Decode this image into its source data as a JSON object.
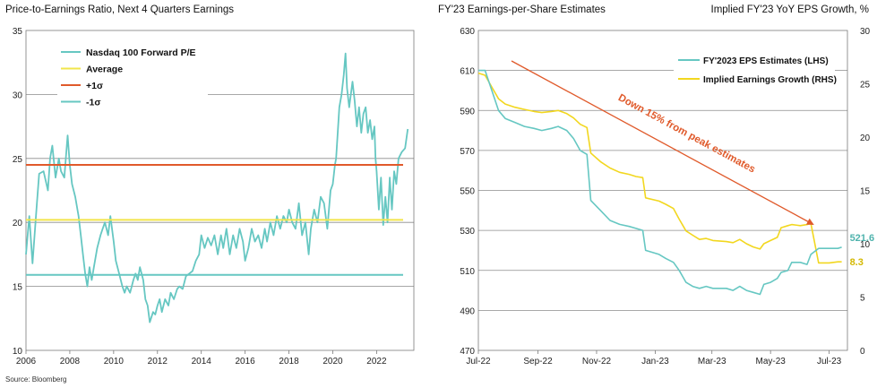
{
  "source": "Source: Bloomberg",
  "chart_data": [
    {
      "type": "line",
      "title": "Price-to-Earnings Ratio, Next 4 Quarters Earnings",
      "ylim": [
        10,
        35
      ],
      "yticks": [
        10,
        15,
        20,
        25,
        30,
        35
      ],
      "xlim": [
        2006,
        2023.7
      ],
      "xticks": [
        2006,
        2008,
        2010,
        2012,
        2014,
        2016,
        2018,
        2020,
        2022
      ],
      "grid": "horizontal",
      "legend_position": "top-left",
      "series": [
        {
          "name": "Nasdaq 100 Forward P/E",
          "color": "#66c7c2",
          "points": [
            [
              2006.0,
              17.5
            ],
            [
              2006.15,
              20.5
            ],
            [
              2006.3,
              16.8
            ],
            [
              2006.5,
              21.5
            ],
            [
              2006.6,
              23.8
            ],
            [
              2006.8,
              24.0
            ],
            [
              2007.0,
              22.5
            ],
            [
              2007.1,
              25.0
            ],
            [
              2007.2,
              26.0
            ],
            [
              2007.35,
              23.5
            ],
            [
              2007.5,
              25.0
            ],
            [
              2007.6,
              24.0
            ],
            [
              2007.75,
              23.5
            ],
            [
              2007.9,
              26.8
            ],
            [
              2008.0,
              24.5
            ],
            [
              2008.1,
              23.0
            ],
            [
              2008.25,
              22.0
            ],
            [
              2008.4,
              20.5
            ],
            [
              2008.5,
              19.0
            ],
            [
              2008.6,
              17.5
            ],
            [
              2008.7,
              16.0
            ],
            [
              2008.8,
              15.0
            ],
            [
              2008.9,
              16.5
            ],
            [
              2009.0,
              15.5
            ],
            [
              2009.1,
              16.5
            ],
            [
              2009.25,
              18.0
            ],
            [
              2009.4,
              19.0
            ],
            [
              2009.5,
              19.5
            ],
            [
              2009.6,
              20.0
            ],
            [
              2009.75,
              19.0
            ],
            [
              2009.85,
              20.5
            ],
            [
              2010.0,
              18.5
            ],
            [
              2010.1,
              17.0
            ],
            [
              2010.25,
              16.0
            ],
            [
              2010.4,
              15.0
            ],
            [
              2010.5,
              14.5
            ],
            [
              2010.6,
              15.0
            ],
            [
              2010.75,
              14.5
            ],
            [
              2010.9,
              15.5
            ],
            [
              2011.0,
              16.0
            ],
            [
              2011.1,
              15.5
            ],
            [
              2011.2,
              16.5
            ],
            [
              2011.35,
              15.5
            ],
            [
              2011.45,
              14.0
            ],
            [
              2011.55,
              13.5
            ],
            [
              2011.65,
              12.2
            ],
            [
              2011.8,
              13.0
            ],
            [
              2011.9,
              12.8
            ],
            [
              2012.0,
              13.5
            ],
            [
              2012.1,
              14.0
            ],
            [
              2012.2,
              13.0
            ],
            [
              2012.35,
              14.0
            ],
            [
              2012.5,
              13.5
            ],
            [
              2012.6,
              14.5
            ],
            [
              2012.75,
              14.0
            ],
            [
              2012.9,
              14.8
            ],
            [
              2013.0,
              15.0
            ],
            [
              2013.15,
              14.8
            ],
            [
              2013.3,
              15.8
            ],
            [
              2013.45,
              16.0
            ],
            [
              2013.6,
              16.2
            ],
            [
              2013.75,
              17.0
            ],
            [
              2013.9,
              17.5
            ],
            [
              2014.0,
              19.0
            ],
            [
              2014.15,
              18.0
            ],
            [
              2014.3,
              18.8
            ],
            [
              2014.45,
              18.2
            ],
            [
              2014.6,
              19.0
            ],
            [
              2014.75,
              17.5
            ],
            [
              2014.9,
              19.0
            ],
            [
              2015.0,
              18.0
            ],
            [
              2015.15,
              19.5
            ],
            [
              2015.3,
              17.5
            ],
            [
              2015.45,
              19.0
            ],
            [
              2015.6,
              18.0
            ],
            [
              2015.75,
              19.5
            ],
            [
              2015.9,
              18.5
            ],
            [
              2016.0,
              17.0
            ],
            [
              2016.15,
              18.0
            ],
            [
              2016.3,
              19.5
            ],
            [
              2016.45,
              18.5
            ],
            [
              2016.6,
              19.0
            ],
            [
              2016.75,
              18.0
            ],
            [
              2016.9,
              19.5
            ],
            [
              2017.0,
              18.5
            ],
            [
              2017.15,
              20.0
            ],
            [
              2017.3,
              19.0
            ],
            [
              2017.45,
              20.5
            ],
            [
              2017.6,
              19.5
            ],
            [
              2017.75,
              20.5
            ],
            [
              2017.9,
              20.0
            ],
            [
              2018.0,
              21.0
            ],
            [
              2018.15,
              20.0
            ],
            [
              2018.3,
              19.5
            ],
            [
              2018.45,
              21.5
            ],
            [
              2018.6,
              19.0
            ],
            [
              2018.75,
              20.0
            ],
            [
              2018.9,
              17.5
            ],
            [
              2019.0,
              19.5
            ],
            [
              2019.15,
              21.0
            ],
            [
              2019.3,
              20.0
            ],
            [
              2019.45,
              22.0
            ],
            [
              2019.6,
              21.5
            ],
            [
              2019.75,
              19.5
            ],
            [
              2019.9,
              22.5
            ],
            [
              2020.0,
              23.0
            ],
            [
              2020.1,
              24.5
            ],
            [
              2020.15,
              25.0
            ],
            [
              2020.3,
              29.0
            ],
            [
              2020.4,
              30.0
            ],
            [
              2020.5,
              31.5
            ],
            [
              2020.58,
              33.2
            ],
            [
              2020.65,
              30.5
            ],
            [
              2020.75,
              29.0
            ],
            [
              2020.9,
              31.0
            ],
            [
              2021.0,
              29.5
            ],
            [
              2021.1,
              27.5
            ],
            [
              2021.2,
              29.0
            ],
            [
              2021.3,
              27.0
            ],
            [
              2021.4,
              28.5
            ],
            [
              2021.5,
              29.0
            ],
            [
              2021.6,
              27.0
            ],
            [
              2021.7,
              28.0
            ],
            [
              2021.8,
              26.5
            ],
            [
              2021.9,
              27.5
            ],
            [
              2021.95,
              25.0
            ],
            [
              2022.0,
              24.0
            ],
            [
              2022.1,
              21.0
            ],
            [
              2022.2,
              23.5
            ],
            [
              2022.3,
              19.8
            ],
            [
              2022.4,
              22.0
            ],
            [
              2022.5,
              20.0
            ],
            [
              2022.6,
              23.5
            ],
            [
              2022.7,
              21.0
            ],
            [
              2022.8,
              24.0
            ],
            [
              2022.9,
              23.0
            ],
            [
              2023.0,
              25.0
            ],
            [
              2023.15,
              25.5
            ],
            [
              2023.3,
              25.8
            ],
            [
              2023.42,
              27.3
            ]
          ]
        },
        {
          "name": "Average",
          "color": "#f2e54b",
          "level": 20.2
        },
        {
          "name": "+1σ",
          "color": "#e05a2b",
          "level": 24.5
        },
        {
          "name": "-1σ",
          "color": "#66c7c2",
          "level": 15.9
        }
      ]
    },
    {
      "type": "line",
      "title": "FY'23 Earnings-per-Share Estimates",
      "right_title": "Implied FY'23 YoY EPS Growth, %",
      "ylim": [
        470,
        630
      ],
      "yticks": [
        470,
        490,
        510,
        530,
        550,
        570,
        590,
        610,
        630
      ],
      "y2lim": [
        0,
        30
      ],
      "y2ticks": [
        0,
        5,
        10,
        15,
        20,
        25,
        30
      ],
      "xlim": [
        "2022-07-01",
        "2023-07-20"
      ],
      "xticks": [
        "Jul-22",
        "Sep-22",
        "Nov-22",
        "Jan-23",
        "Mar-23",
        "May-23",
        "Jul-23"
      ],
      "grid": "horizontal",
      "legend_position": "top-right",
      "annotation": "Down 15% from peak estimates",
      "series": [
        {
          "name": "FY'2023 EPS Estimates (LHS)",
          "color": "#66c7c2",
          "axis": "left",
          "end_label": "521.6",
          "points": [
            [
              "2022-07-01",
              610
            ],
            [
              "2022-07-08",
              610
            ],
            [
              "2022-07-15",
              600
            ],
            [
              "2022-07-22",
              590
            ],
            [
              "2022-07-29",
              586
            ],
            [
              "2022-08-08",
              584
            ],
            [
              "2022-08-18",
              582
            ],
            [
              "2022-08-28",
              581
            ],
            [
              "2022-09-05",
              580
            ],
            [
              "2022-09-15",
              581
            ],
            [
              "2022-09-22",
              582
            ],
            [
              "2022-10-01",
              580
            ],
            [
              "2022-10-08",
              576
            ],
            [
              "2022-10-15",
              570
            ],
            [
              "2022-10-22",
              568
            ],
            [
              "2022-10-26",
              545
            ],
            [
              "2022-11-05",
              540
            ],
            [
              "2022-11-15",
              535
            ],
            [
              "2022-11-25",
              533
            ],
            [
              "2022-12-05",
              532
            ],
            [
              "2022-12-12",
              531
            ],
            [
              "2022-12-19",
              530
            ],
            [
              "2022-12-22",
              520
            ],
            [
              "2023-01-05",
              518
            ],
            [
              "2023-01-12",
              516
            ],
            [
              "2023-01-20",
              514
            ],
            [
              "2023-01-26",
              510
            ],
            [
              "2023-02-02",
              504
            ],
            [
              "2023-02-09",
              502
            ],
            [
              "2023-02-16",
              501
            ],
            [
              "2023-02-23",
              502
            ],
            [
              "2023-03-02",
              501
            ],
            [
              "2023-03-16",
              501
            ],
            [
              "2023-03-23",
              500
            ],
            [
              "2023-03-30",
              502
            ],
            [
              "2023-04-06",
              500
            ],
            [
              "2023-04-13",
              499
            ],
            [
              "2023-04-20",
              498
            ],
            [
              "2023-04-24",
              503
            ],
            [
              "2023-05-01",
              504
            ],
            [
              "2023-05-08",
              506
            ],
            [
              "2023-05-12",
              509
            ],
            [
              "2023-05-19",
              510
            ],
            [
              "2023-05-23",
              514
            ],
            [
              "2023-06-01",
              514
            ],
            [
              "2023-06-08",
              513
            ],
            [
              "2023-06-12",
              518
            ],
            [
              "2023-06-20",
              521
            ],
            [
              "2023-07-01",
              521
            ],
            [
              "2023-07-10",
              521
            ],
            [
              "2023-07-14",
              521.6
            ]
          ]
        },
        {
          "name": "Implied Earnings Growth (RHS)",
          "color": "#f2d71f",
          "axis": "right",
          "end_label": "8.3",
          "points": [
            [
              "2022-07-01",
              26.0
            ],
            [
              "2022-07-08",
              25.8
            ],
            [
              "2022-07-15",
              24.7
            ],
            [
              "2022-07-22",
              23.6
            ],
            [
              "2022-07-29",
              23.1
            ],
            [
              "2022-08-08",
              22.8
            ],
            [
              "2022-08-18",
              22.6
            ],
            [
              "2022-08-28",
              22.4
            ],
            [
              "2022-09-05",
              22.3
            ],
            [
              "2022-09-15",
              22.4
            ],
            [
              "2022-09-22",
              22.5
            ],
            [
              "2022-10-01",
              22.2
            ],
            [
              "2022-10-08",
              21.8
            ],
            [
              "2022-10-15",
              21.2
            ],
            [
              "2022-10-22",
              20.9
            ],
            [
              "2022-10-26",
              18.5
            ],
            [
              "2022-11-05",
              17.7
            ],
            [
              "2022-11-15",
              17.1
            ],
            [
              "2022-11-25",
              16.7
            ],
            [
              "2022-12-05",
              16.5
            ],
            [
              "2022-12-12",
              16.3
            ],
            [
              "2022-12-19",
              16.2
            ],
            [
              "2022-12-22",
              14.3
            ],
            [
              "2023-01-05",
              14.0
            ],
            [
              "2023-01-12",
              13.7
            ],
            [
              "2023-01-20",
              13.3
            ],
            [
              "2023-01-26",
              12.3
            ],
            [
              "2023-02-02",
              11.2
            ],
            [
              "2023-02-09",
              10.8
            ],
            [
              "2023-02-16",
              10.4
            ],
            [
              "2023-02-23",
              10.5
            ],
            [
              "2023-03-02",
              10.3
            ],
            [
              "2023-03-16",
              10.2
            ],
            [
              "2023-03-23",
              10.1
            ],
            [
              "2023-03-30",
              10.4
            ],
            [
              "2023-04-06",
              10.0
            ],
            [
              "2023-04-13",
              9.7
            ],
            [
              "2023-04-20",
              9.5
            ],
            [
              "2023-04-24",
              10.0
            ],
            [
              "2023-05-01",
              10.3
            ],
            [
              "2023-05-08",
              10.6
            ],
            [
              "2023-05-12",
              11.5
            ],
            [
              "2023-05-19",
              11.7
            ],
            [
              "2023-05-23",
              11.8
            ],
            [
              "2023-06-01",
              11.7
            ],
            [
              "2023-06-08",
              11.8
            ],
            [
              "2023-06-12",
              11.9
            ],
            [
              "2023-06-20",
              8.2
            ],
            [
              "2023-07-01",
              8.2
            ],
            [
              "2023-07-10",
              8.3
            ],
            [
              "2023-07-14",
              8.3
            ]
          ]
        }
      ]
    }
  ]
}
